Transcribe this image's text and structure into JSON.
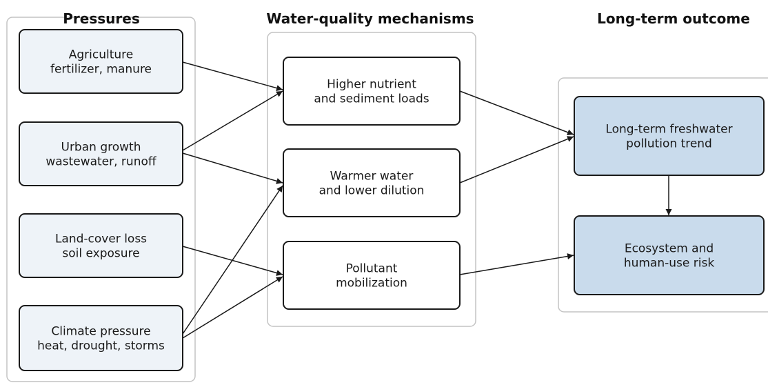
{
  "columns": [
    {
      "title": "Pressures",
      "nodes": [
        {
          "lines": [
            "Agriculture",
            "fertilizer, manure"
          ]
        },
        {
          "lines": [
            "Urban growth",
            "wastewater, runoff"
          ]
        },
        {
          "lines": [
            "Land-cover loss",
            "soil exposure"
          ]
        },
        {
          "lines": [
            "Climate pressure",
            "heat, drought, storms"
          ]
        }
      ]
    },
    {
      "title": "Water-quality mechanisms",
      "nodes": [
        {
          "lines": [
            "Higher nutrient",
            "and sediment loads"
          ]
        },
        {
          "lines": [
            "Warmer water",
            "and lower dilution"
          ]
        },
        {
          "lines": [
            "Pollutant",
            "mobilization"
          ]
        }
      ]
    },
    {
      "title": "Long-term outcome",
      "nodes": [
        {
          "lines": [
            "Long-term freshwater",
            "pollution trend"
          ]
        },
        {
          "lines": [
            "Ecosystem and",
            "human-use risk"
          ]
        }
      ]
    }
  ]
}
